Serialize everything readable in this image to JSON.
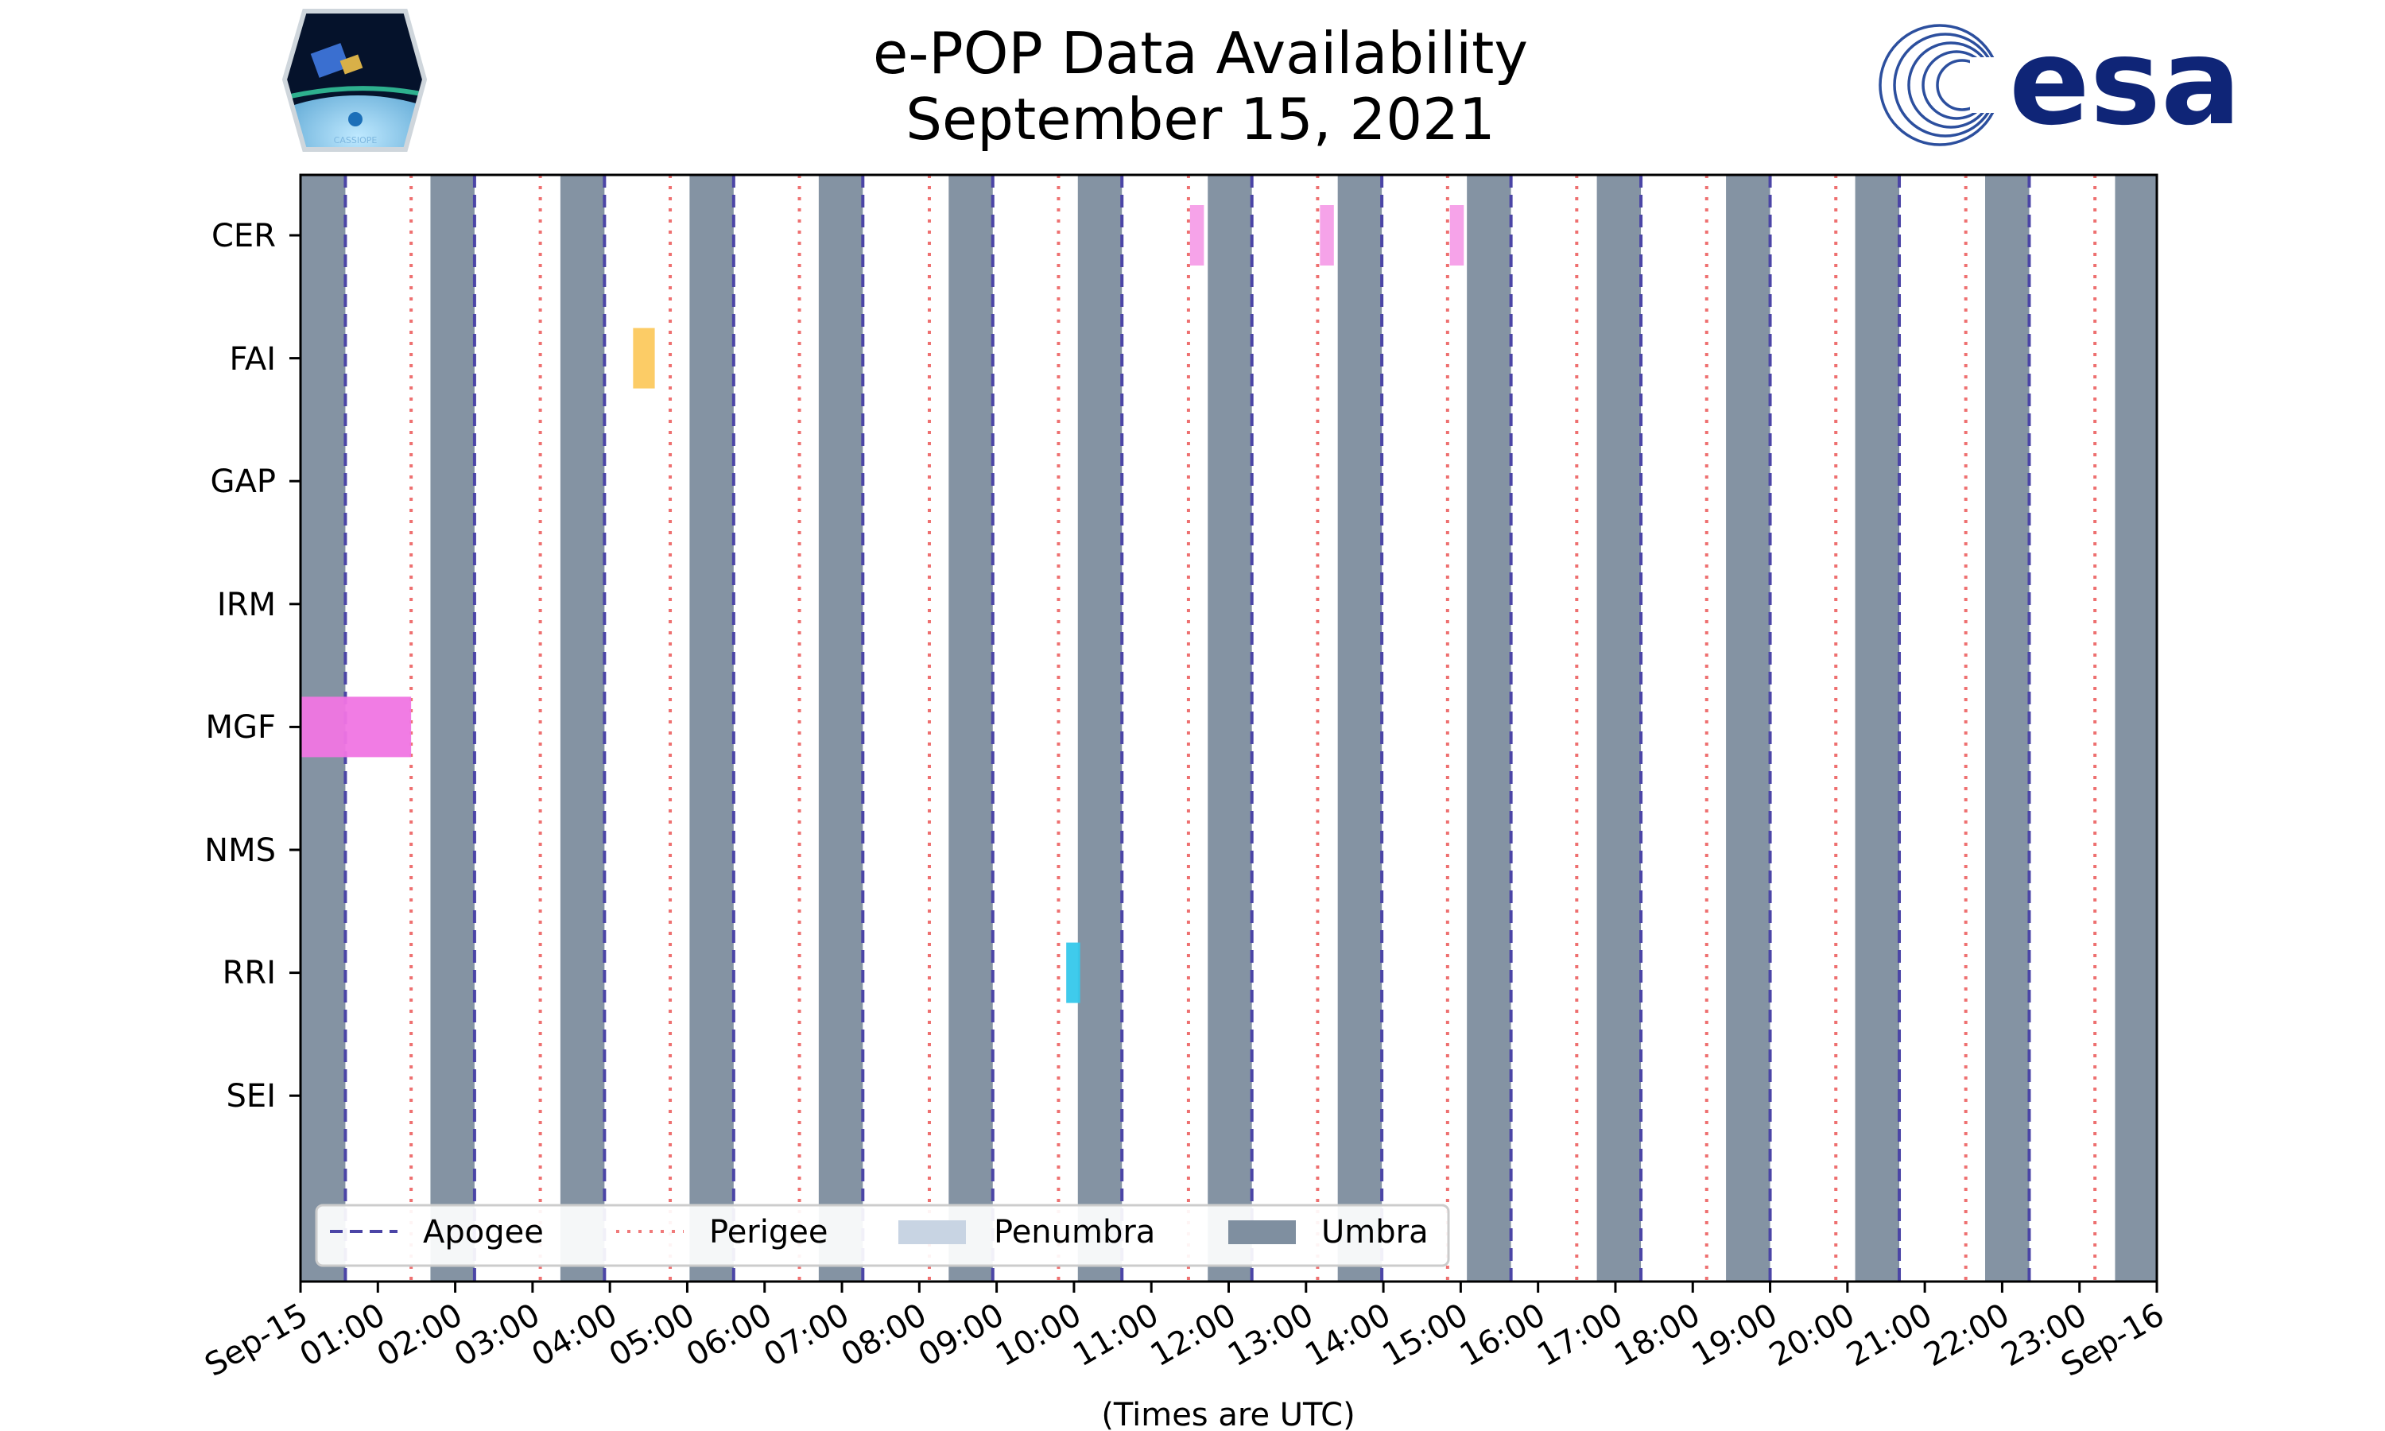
{
  "chart_data": {
    "type": "timeline",
    "title_line1": "e-POP Data Availability",
    "title_line2": "September 15, 2021",
    "xlabel": "(Times are UTC)",
    "xlim_hours": [
      0,
      24
    ],
    "x_ticks": [
      "Sep-15",
      "01:00",
      "02:00",
      "03:00",
      "04:00",
      "05:00",
      "06:00",
      "07:00",
      "08:00",
      "09:00",
      "10:00",
      "11:00",
      "12:00",
      "13:00",
      "14:00",
      "15:00",
      "16:00",
      "17:00",
      "18:00",
      "19:00",
      "20:00",
      "21:00",
      "22:00",
      "23:00",
      "Sep-16"
    ],
    "instruments": [
      "CER",
      "FAI",
      "GAP",
      "IRM",
      "MGF",
      "NMS",
      "RRI",
      "SEI"
    ],
    "umbra_hours": [
      [
        0,
        0.58
      ],
      [
        1.68,
        2.25
      ],
      [
        3.36,
        3.93
      ],
      [
        5.03,
        5.6
      ],
      [
        6.7,
        7.27
      ],
      [
        8.38,
        8.95
      ],
      [
        10.05,
        10.62
      ],
      [
        11.73,
        12.3
      ],
      [
        13.41,
        13.98
      ],
      [
        15.08,
        15.65
      ],
      [
        16.76,
        17.33
      ],
      [
        18.43,
        19.0
      ],
      [
        20.1,
        20.67
      ],
      [
        21.78,
        22.35
      ],
      [
        23.46,
        24
      ]
    ],
    "apogee_hours": [
      0.58,
      2.25,
      3.93,
      5.6,
      7.27,
      8.95,
      10.62,
      12.3,
      13.98,
      15.65,
      17.33,
      19.0,
      20.67,
      22.35
    ],
    "perigee_hours": [
      1.43,
      3.1,
      4.78,
      6.45,
      8.13,
      9.8,
      11.48,
      13.15,
      14.83,
      16.5,
      18.18,
      19.85,
      21.53,
      23.2
    ],
    "availability": [
      {
        "instrument": "CER",
        "start": 11.5,
        "end": 11.68,
        "color": "#f59ee8"
      },
      {
        "instrument": "CER",
        "start": 13.18,
        "end": 13.36,
        "color": "#f59ee8"
      },
      {
        "instrument": "CER",
        "start": 14.86,
        "end": 15.04,
        "color": "#f59ee8"
      },
      {
        "instrument": "FAI",
        "start": 4.3,
        "end": 4.58,
        "color": "#fcc95e"
      },
      {
        "instrument": "MGF",
        "start": 0,
        "end": 1.43,
        "color": "#f075e3"
      },
      {
        "instrument": "RRI",
        "start": 9.9,
        "end": 10.08,
        "color": "#35c8eb"
      }
    ],
    "legend": [
      {
        "label": "Apogee",
        "style": "dashed",
        "color": "#4b45a6"
      },
      {
        "label": "Perigee",
        "style": "dotted",
        "color": "#f07a7a"
      },
      {
        "label": "Penumbra",
        "style": "patch",
        "color": "#c8d4e3"
      },
      {
        "label": "Umbra",
        "style": "patch",
        "color": "#7f8fa0"
      }
    ],
    "colors": {
      "umbra": "#8493a3",
      "apogee": "#4b45a6",
      "perigee": "#ee7070"
    }
  },
  "logos": {
    "left_caption": "CASSIOPE",
    "right_text": "esa"
  }
}
